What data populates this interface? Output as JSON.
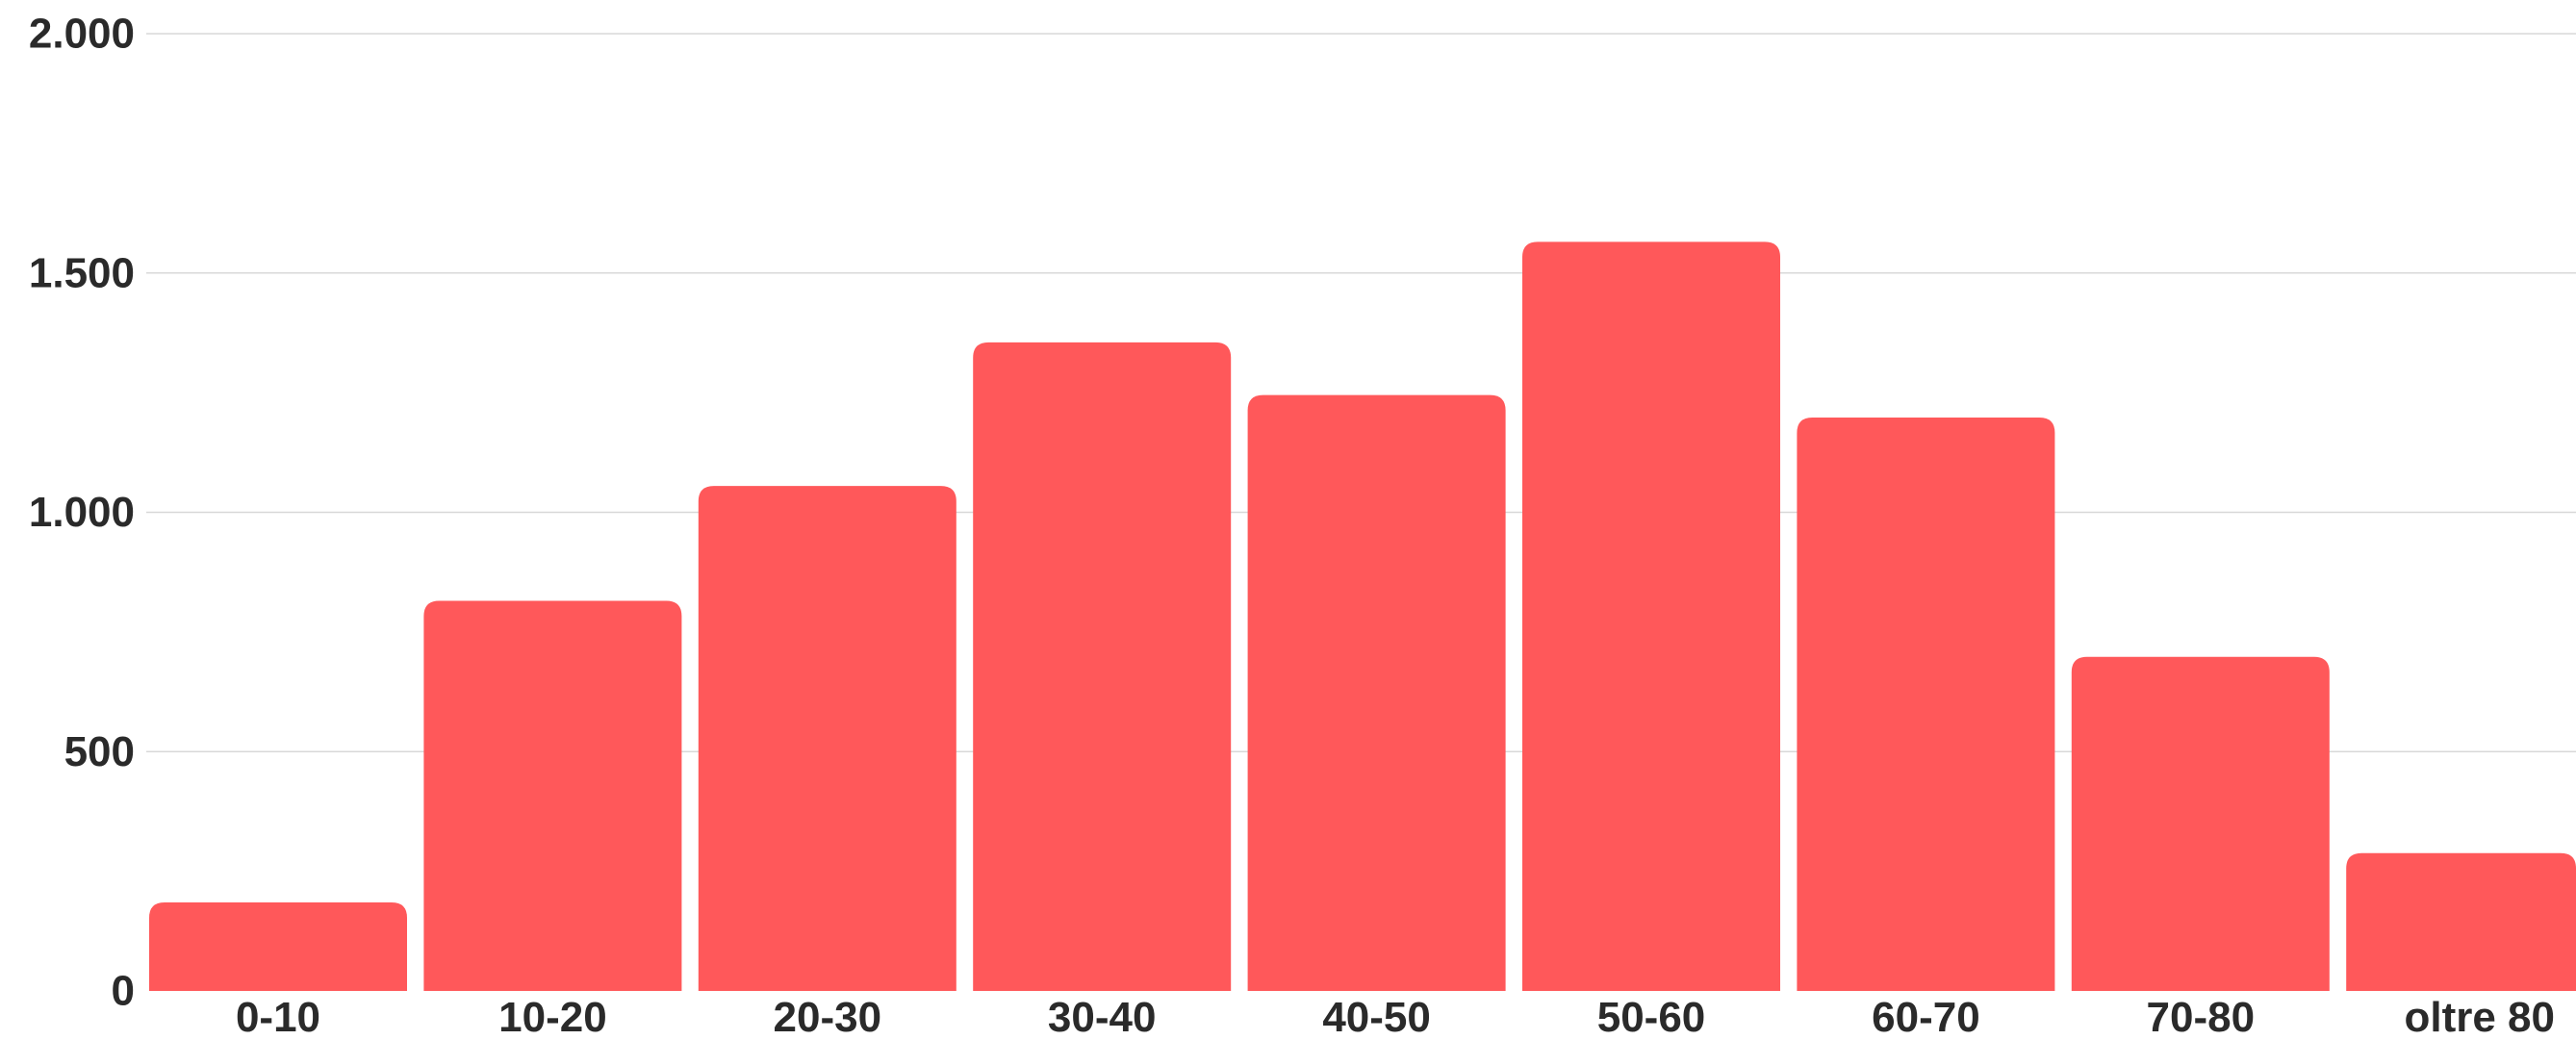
{
  "chart_data": {
    "type": "bar",
    "title": "",
    "xlabel": "",
    "ylabel": "",
    "categories": [
      "0-10",
      "10-20",
      "20-30",
      "30-40",
      "40-50",
      "50-60",
      "60-70",
      "70-80",
      "oltre 80"
    ],
    "values": [
      185,
      815,
      1055,
      1355,
      1245,
      1565,
      1198,
      698,
      288
    ],
    "ylim": [
      0,
      2000
    ],
    "yticks": [
      0,
      500,
      1000,
      1500,
      2000
    ],
    "ytick_labels": [
      "0",
      "500",
      "1.000",
      "1.500",
      "2.000"
    ],
    "grid": true,
    "legend": "none",
    "colors": {
      "bar": "#ff585a",
      "grid": "#d8d8d8",
      "text": "#2a2a2a"
    }
  }
}
